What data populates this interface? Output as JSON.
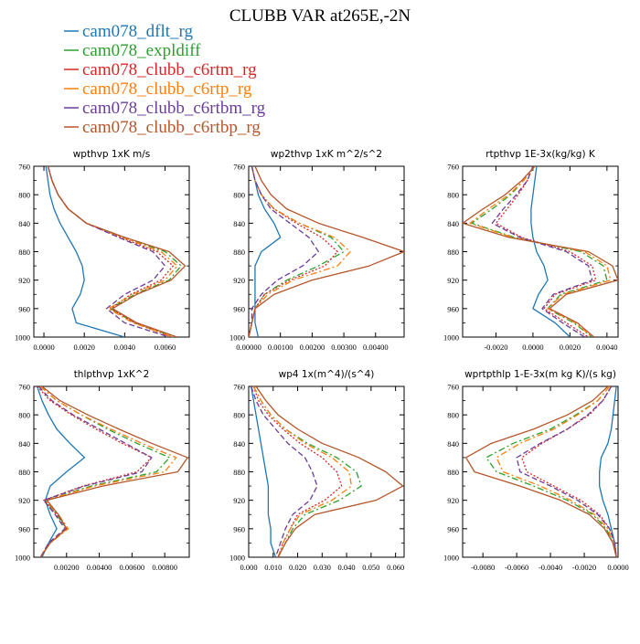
{
  "title": "CLUBB VAR at265E,-2N",
  "legend": [
    {
      "name": "cam078_dflt_rg",
      "color": "#1f77b4",
      "dash": "solid"
    },
    {
      "name": "cam078_expldiff",
      "color": "#2ca02c",
      "dash": "dashdot"
    },
    {
      "name": "cam078_clubb_c6rtm_rg",
      "color": "#d62728",
      "dash": "dot"
    },
    {
      "name": "cam078_clubb_c6rtp_rg",
      "color": "#ff7f0e",
      "dash": "dashdot"
    },
    {
      "name": "cam078_clubb_c6rtbm_rg",
      "color": "#6a3d9a",
      "dash": "dash"
    },
    {
      "name": "cam078_clubb_c6rtbp_rg",
      "color": "#b5562a",
      "dash": "solid"
    }
  ],
  "chart_data": [
    {
      "type": "line",
      "title": "wpthvp  1xK m/s",
      "xlim": [
        -0.0005,
        0.0072
      ],
      "ylim": [
        760,
        1000
      ],
      "y_inverted": true,
      "xticks": [
        0.0,
        0.002,
        0.004,
        0.006
      ],
      "xtick_labels": [
        "0.0000",
        "0.0020",
        "0.0040",
        "0.0060"
      ],
      "yticks": [
        760,
        800,
        840,
        880,
        920,
        960,
        1000
      ],
      "y": [
        760,
        780,
        800,
        820,
        840,
        860,
        880,
        900,
        920,
        940,
        960,
        980,
        1000
      ],
      "series": [
        {
          "name": "cam078_dflt_rg",
          "values": [
            0.0001,
            0.0002,
            0.0003,
            0.0005,
            0.0008,
            0.0012,
            0.0016,
            0.0019,
            0.002,
            0.0018,
            0.0014,
            0.0016,
            0.004
          ]
        },
        {
          "name": "cam078_expldiff",
          "values": [
            0.0002,
            0.0004,
            0.0007,
            0.0012,
            0.0021,
            0.004,
            0.006,
            0.0068,
            0.0062,
            0.0045,
            0.0033,
            0.0045,
            0.0065
          ]
        },
        {
          "name": "cam078_clubb_c6rtm_rg",
          "values": [
            0.0002,
            0.0004,
            0.0007,
            0.0012,
            0.0021,
            0.0038,
            0.0056,
            0.0064,
            0.0058,
            0.0043,
            0.0033,
            0.0045,
            0.0063
          ]
        },
        {
          "name": "cam078_clubb_c6rtp_rg",
          "values": [
            0.0002,
            0.0004,
            0.0007,
            0.0012,
            0.0021,
            0.0039,
            0.0058,
            0.0066,
            0.006,
            0.0044,
            0.0032,
            0.0044,
            0.0064
          ]
        },
        {
          "name": "cam078_clubb_c6rtbm_rg",
          "values": [
            0.0002,
            0.0004,
            0.0007,
            0.0012,
            0.0021,
            0.0037,
            0.0054,
            0.006,
            0.0054,
            0.004,
            0.0031,
            0.004,
            0.0062
          ]
        },
        {
          "name": "cam078_clubb_c6rtbp_rg",
          "values": [
            0.0002,
            0.0004,
            0.0007,
            0.0012,
            0.0021,
            0.004,
            0.0062,
            0.007,
            0.0063,
            0.0046,
            0.0034,
            0.0046,
            0.0066
          ]
        }
      ]
    },
    {
      "type": "line",
      "title": "wp2thvp  1xK m^2/s^2",
      "xlim": [
        0.0,
        0.0049
      ],
      "ylim": [
        760,
        1000
      ],
      "y_inverted": true,
      "xticks": [
        0.0,
        0.001,
        0.002,
        0.003,
        0.004
      ],
      "xtick_labels": [
        "0.00000",
        "0.00100",
        "0.00200",
        "0.00300",
        "0.00400"
      ],
      "yticks": [
        760,
        800,
        840,
        880,
        920,
        960,
        1000
      ],
      "y": [
        760,
        780,
        800,
        820,
        840,
        860,
        880,
        900,
        920,
        940,
        960,
        980,
        1000
      ],
      "series": [
        {
          "name": "cam078_dflt_rg",
          "values": [
            0.0001,
            0.0002,
            0.0003,
            0.0005,
            0.0008,
            0.001,
            0.0004,
            0.0002,
            0.0002,
            0.0002,
            0.0002,
            0.0002,
            0.0003
          ]
        },
        {
          "name": "cam078_expldiff",
          "values": [
            0.0001,
            0.0002,
            0.0004,
            0.0008,
            0.0016,
            0.0026,
            0.003,
            0.0022,
            0.0012,
            0.0005,
            0.0002,
            0.0001,
            0.0
          ]
        },
        {
          "name": "cam078_clubb_c6rtm_rg",
          "values": [
            0.0001,
            0.0002,
            0.0004,
            0.0008,
            0.0015,
            0.0023,
            0.0028,
            0.0024,
            0.0013,
            0.0005,
            0.0002,
            0.0001,
            0.0
          ]
        },
        {
          "name": "cam078_clubb_c6rtp_rg",
          "values": [
            0.0001,
            0.0002,
            0.0004,
            0.0008,
            0.0016,
            0.0027,
            0.0032,
            0.0028,
            0.0014,
            0.0006,
            0.0002,
            0.0001,
            0.0
          ]
        },
        {
          "name": "cam078_clubb_c6rtbm_rg",
          "values": [
            0.0001,
            0.0002,
            0.0004,
            0.0007,
            0.0013,
            0.0019,
            0.0022,
            0.0017,
            0.0009,
            0.0004,
            0.0001,
            0.0001,
            0.0
          ]
        },
        {
          "name": "cam078_clubb_c6rtbp_rg",
          "values": [
            0.0002,
            0.0004,
            0.0007,
            0.0012,
            0.0022,
            0.0036,
            0.0049,
            0.0038,
            0.002,
            0.0008,
            0.0002,
            0.0001,
            0.0
          ]
        }
      ]
    },
    {
      "type": "line",
      "title": "rtpthvp   1E-3x(kg/kg) K",
      "xlim": [
        -0.0038,
        0.0046
      ],
      "ylim": [
        760,
        1000
      ],
      "y_inverted": true,
      "xticks": [
        -0.002,
        0.0,
        0.002,
        0.004
      ],
      "xtick_labels": [
        "-0.0020",
        "0.0000",
        "0.0020",
        "0.0040"
      ],
      "yticks": [
        760,
        800,
        840,
        880,
        920,
        960,
        1000
      ],
      "y": [
        760,
        780,
        800,
        820,
        840,
        860,
        880,
        900,
        920,
        940,
        960,
        980,
        1000
      ],
      "series": [
        {
          "name": "cam078_dflt_rg",
          "values": [
            0.0002,
            0.0001,
            0.0,
            -0.0001,
            -0.0001,
            0.0,
            0.0002,
            0.0006,
            0.0008,
            0.0003,
            0.0,
            0.0012,
            0.002
          ]
        },
        {
          "name": "cam078_expldiff",
          "values": [
            0.0001,
            -0.0005,
            -0.0012,
            -0.0022,
            -0.0033,
            -0.001,
            0.0026,
            0.0038,
            0.004,
            0.0015,
            0.0008,
            0.0022,
            0.0032
          ]
        },
        {
          "name": "cam078_clubb_c6rtm_rg",
          "values": [
            0.0,
            -0.0003,
            -0.0008,
            -0.0014,
            -0.002,
            -0.0006,
            0.002,
            0.0032,
            0.0034,
            0.0012,
            0.0006,
            0.0018,
            0.003
          ]
        },
        {
          "name": "cam078_clubb_c6rtp_rg",
          "values": [
            0.0001,
            -0.0005,
            -0.0013,
            -0.0024,
            -0.0034,
            -0.0011,
            0.0028,
            0.004,
            0.0042,
            0.0016,
            0.0008,
            0.0023,
            0.0032
          ]
        },
        {
          "name": "cam078_clubb_c6rtbm_rg",
          "values": [
            0.0,
            -0.0003,
            -0.0009,
            -0.0016,
            -0.0022,
            -0.0007,
            0.0018,
            0.003,
            0.0032,
            0.0011,
            0.0005,
            0.0016,
            0.0028
          ]
        },
        {
          "name": "cam078_clubb_c6rtbp_rg",
          "values": [
            0.0001,
            -0.0006,
            -0.0015,
            -0.0027,
            -0.0038,
            -0.0013,
            0.003,
            0.0043,
            0.0046,
            0.0018,
            0.0009,
            0.0024,
            0.0033
          ]
        }
      ]
    },
    {
      "type": "line",
      "title": "thlpthvp   1xK^2",
      "xlim": [
        0.0,
        0.0095
      ],
      "ylim": [
        760,
        1000
      ],
      "y_inverted": true,
      "xticks": [
        0.002,
        0.004,
        0.006,
        0.008
      ],
      "xtick_labels": [
        "0.00200",
        "0.00400",
        "0.00600",
        "0.00800"
      ],
      "yticks": [
        760,
        800,
        840,
        880,
        920,
        960,
        1000
      ],
      "y": [
        760,
        780,
        800,
        820,
        840,
        860,
        880,
        900,
        920,
        940,
        960,
        980,
        1000
      ],
      "series": [
        {
          "name": "cam078_dflt_rg",
          "values": [
            0.0002,
            0.0005,
            0.0009,
            0.0014,
            0.0022,
            0.0031,
            0.002,
            0.001,
            0.0007,
            0.001,
            0.0014,
            0.0009,
            0.0005
          ]
        },
        {
          "name": "cam078_expldiff",
          "values": [
            0.0004,
            0.0014,
            0.0029,
            0.0045,
            0.0063,
            0.0083,
            0.0075,
            0.0035,
            0.0007,
            0.0014,
            0.002,
            0.001,
            0.0004
          ]
        },
        {
          "name": "cam078_clubb_c6rtm_rg",
          "values": [
            0.0002,
            0.001,
            0.0023,
            0.0038,
            0.0054,
            0.0072,
            0.0063,
            0.003,
            0.0006,
            0.0014,
            0.002,
            0.001,
            0.0004
          ]
        },
        {
          "name": "cam078_clubb_c6rtp_rg",
          "values": [
            0.0004,
            0.0014,
            0.0029,
            0.0047,
            0.0066,
            0.0087,
            0.008,
            0.0037,
            0.0007,
            0.0015,
            0.0021,
            0.001,
            0.0004
          ]
        },
        {
          "name": "cam078_clubb_c6rtbm_rg",
          "values": [
            0.0003,
            0.0011,
            0.0024,
            0.004,
            0.0056,
            0.0072,
            0.0066,
            0.0031,
            0.0006,
            0.0013,
            0.0019,
            0.0009,
            0.0004
          ]
        },
        {
          "name": "cam078_clubb_c6rtbp_rg",
          "values": [
            0.0005,
            0.0016,
            0.0033,
            0.0052,
            0.0072,
            0.0094,
            0.0088,
            0.0042,
            0.0008,
            0.0015,
            0.002,
            0.001,
            0.0004
          ]
        }
      ]
    },
    {
      "type": "line",
      "title": "wp4   1x(m^4)/(s^4)",
      "xlim": [
        0.0,
        0.0635
      ],
      "ylim": [
        760,
        1000
      ],
      "y_inverted": true,
      "xticks": [
        0.0,
        0.01,
        0.02,
        0.03,
        0.04,
        0.05,
        0.06
      ],
      "xtick_labels": [
        "0.000",
        "0.010",
        "0.020",
        "0.030",
        "0.040",
        "0.050",
        "0.060"
      ],
      "yticks": [
        760,
        800,
        840,
        880,
        920,
        960,
        1000
      ],
      "y": [
        760,
        780,
        800,
        820,
        840,
        860,
        880,
        900,
        920,
        940,
        960,
        980,
        1000
      ],
      "series": [
        {
          "name": "cam078_dflt_rg",
          "values": [
            0.001,
            0.002,
            0.003,
            0.004,
            0.005,
            0.006,
            0.007,
            0.008,
            0.008,
            0.008,
            0.009,
            0.009,
            0.011
          ]
        },
        {
          "name": "cam078_expldiff",
          "values": [
            0.002,
            0.005,
            0.009,
            0.015,
            0.024,
            0.036,
            0.044,
            0.046,
            0.037,
            0.023,
            0.018,
            0.015,
            0.012
          ]
        },
        {
          "name": "cam078_clubb_c6rtm_rg",
          "values": [
            0.002,
            0.004,
            0.008,
            0.014,
            0.021,
            0.03,
            0.036,
            0.038,
            0.031,
            0.02,
            0.017,
            0.014,
            0.012
          ]
        },
        {
          "name": "cam078_clubb_c6rtp_rg",
          "values": [
            0.002,
            0.005,
            0.009,
            0.015,
            0.023,
            0.034,
            0.041,
            0.042,
            0.034,
            0.021,
            0.017,
            0.014,
            0.012
          ]
        },
        {
          "name": "cam078_clubb_c6rtbm_rg",
          "values": [
            0.001,
            0.003,
            0.006,
            0.011,
            0.016,
            0.023,
            0.026,
            0.028,
            0.025,
            0.018,
            0.015,
            0.013,
            0.011
          ]
        },
        {
          "name": "cam078_clubb_c6rtbp_rg",
          "values": [
            0.003,
            0.007,
            0.012,
            0.02,
            0.03,
            0.045,
            0.056,
            0.063,
            0.052,
            0.027,
            0.019,
            0.015,
            0.012
          ]
        }
      ]
    },
    {
      "type": "line",
      "title": "wprtpthlp   1-E-3x(m kg K)/(s kg)",
      "xlim": [
        -0.0092,
        0.0
      ],
      "ylim": [
        760,
        1000
      ],
      "y_inverted": true,
      "xticks": [
        -0.008,
        -0.006,
        -0.004,
        -0.002,
        0.0
      ],
      "xtick_labels": [
        "-0.0080",
        "-0.0060",
        "-0.0040",
        "-0.0020",
        "0.0000"
      ],
      "yticks": [
        760,
        800,
        840,
        880,
        920,
        960,
        1000
      ],
      "y": [
        760,
        780,
        800,
        820,
        840,
        860,
        880,
        900,
        920,
        940,
        960,
        980,
        1000
      ],
      "series": [
        {
          "name": "cam078_dflt_rg",
          "values": [
            -0.0001,
            -0.0002,
            -0.0003,
            -0.0004,
            -0.0006,
            -0.001,
            -0.0011,
            -0.0011,
            -0.0009,
            -0.0006,
            -0.0004,
            -0.0002,
            -0.0001
          ]
        },
        {
          "name": "cam078_expldiff",
          "values": [
            -0.0005,
            -0.0012,
            -0.0025,
            -0.004,
            -0.0062,
            -0.0078,
            -0.0072,
            -0.005,
            -0.003,
            -0.0015,
            -0.0007,
            -0.0003,
            -0.0001
          ]
        },
        {
          "name": "cam078_clubb_c6rtm_rg",
          "values": [
            -0.0004,
            -0.0009,
            -0.0017,
            -0.003,
            -0.0045,
            -0.0057,
            -0.0054,
            -0.0038,
            -0.0022,
            -0.0011,
            -0.0005,
            -0.0002,
            -0.0001
          ]
        },
        {
          "name": "cam078_clubb_c6rtp_rg",
          "values": [
            -0.0005,
            -0.0012,
            -0.0024,
            -0.0038,
            -0.0058,
            -0.0072,
            -0.0068,
            -0.0046,
            -0.0028,
            -0.0014,
            -0.0006,
            -0.0003,
            -0.0001
          ]
        },
        {
          "name": "cam078_clubb_c6rtbm_rg",
          "values": [
            -0.0004,
            -0.0009,
            -0.0018,
            -0.003,
            -0.0046,
            -0.006,
            -0.0058,
            -0.004,
            -0.0024,
            -0.0012,
            -0.0005,
            -0.0002,
            -0.0001
          ]
        },
        {
          "name": "cam078_clubb_c6rtbp_rg",
          "values": [
            -0.0006,
            -0.0015,
            -0.003,
            -0.005,
            -0.0075,
            -0.009,
            -0.0085,
            -0.0058,
            -0.0034,
            -0.0017,
            -0.0008,
            -0.0003,
            -0.0001
          ]
        }
      ]
    }
  ]
}
